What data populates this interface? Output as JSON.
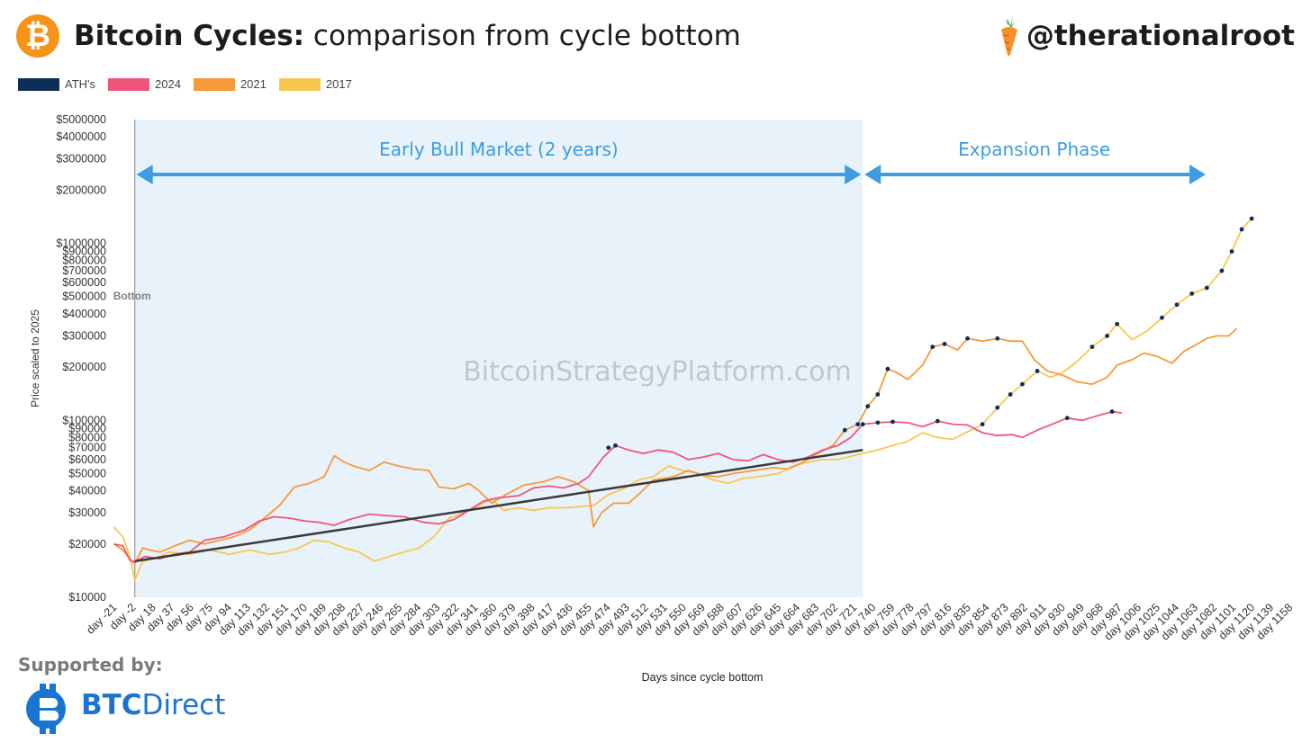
{
  "header": {
    "title_bold": "Bitcoin Cycles:",
    "title_rest": " comparison from cycle bottom",
    "logo_glyph": "₿",
    "handle": "@therationalroot",
    "handle_icon": "carrot-icon"
  },
  "colors": {
    "ath": "#0d2f57",
    "c2024": "#f0567a",
    "c2021": "#f79a3a",
    "c2017": "#f9c74f",
    "phase_bg": "#e8f2fb",
    "arrow": "#3d9de0",
    "trend": "#3a3a3a",
    "btc_orange": "#f7931a",
    "brand_blue": "#1a75d2"
  },
  "legend": [
    {
      "label": "ATH's",
      "color": "#0d2f57"
    },
    {
      "label": "2024",
      "color": "#f0567a"
    },
    {
      "label": "2021",
      "color": "#f79a3a"
    },
    {
      "label": "2017",
      "color": "#f9c74f"
    }
  ],
  "chart_data": {
    "type": "line",
    "title": "Bitcoin Cycles: comparison from cycle bottom",
    "xlabel": "Days since cycle bottom",
    "ylabel": "Price scaled to 2025",
    "y_scale": "log",
    "xlim": [
      -25,
      1165
    ],
    "ylim": [
      10000,
      5000000
    ],
    "x_ticks": [
      -21,
      -2,
      18,
      37,
      56,
      75,
      94,
      113,
      132,
      151,
      170,
      189,
      208,
      227,
      246,
      265,
      284,
      303,
      322,
      341,
      360,
      379,
      398,
      417,
      436,
      455,
      474,
      493,
      512,
      531,
      550,
      569,
      588,
      607,
      626,
      645,
      664,
      683,
      702,
      721,
      740,
      759,
      778,
      797,
      816,
      835,
      854,
      873,
      892,
      911,
      930,
      949,
      968,
      987,
      1006,
      1025,
      1044,
      1063,
      1082,
      1101,
      1120,
      1139,
      1158
    ],
    "x_tick_prefix": "day ",
    "y_ticks": [
      10000,
      20000,
      30000,
      40000,
      50000,
      60000,
      70000,
      80000,
      90000,
      100000,
      200000,
      300000,
      400000,
      500000,
      600000,
      700000,
      800000,
      900000,
      1000000,
      2000000,
      3000000,
      4000000,
      5000000
    ],
    "y_tick_prefix": "$",
    "annotations": {
      "bottom_label": "Bottom",
      "bottom_day": 0,
      "phase1": {
        "label": "Early Bull Market (2 years)",
        "start": 0,
        "end": 730
      },
      "phase2": {
        "label": "Expansion Phase",
        "start": 730,
        "end": 1063
      },
      "watermark": "BitcoinStrategyPlatform.com",
      "trend": {
        "from": [
          0,
          16000
        ],
        "to": [
          730,
          68000
        ]
      }
    },
    "series": [
      {
        "name": "2024",
        "color": "#f0567a",
        "points": [
          [
            -21,
            20000
          ],
          [
            -12,
            19500
          ],
          [
            -5,
            16200
          ],
          [
            0,
            15800
          ],
          [
            10,
            17000
          ],
          [
            25,
            16500
          ],
          [
            40,
            17500
          ],
          [
            55,
            18000
          ],
          [
            70,
            21000
          ],
          [
            90,
            22000
          ],
          [
            110,
            24000
          ],
          [
            125,
            27000
          ],
          [
            140,
            28500
          ],
          [
            155,
            28000
          ],
          [
            170,
            27000
          ],
          [
            185,
            26500
          ],
          [
            200,
            25500
          ],
          [
            215,
            27500
          ],
          [
            235,
            29500
          ],
          [
            250,
            29000
          ],
          [
            270,
            28500
          ],
          [
            290,
            26500
          ],
          [
            305,
            26000
          ],
          [
            320,
            27500
          ],
          [
            335,
            31000
          ],
          [
            350,
            35000
          ],
          [
            365,
            36500
          ],
          [
            385,
            37500
          ],
          [
            400,
            41500
          ],
          [
            415,
            42500
          ],
          [
            430,
            41500
          ],
          [
            445,
            44000
          ],
          [
            455,
            48000
          ],
          [
            470,
            62000
          ],
          [
            482,
            72000
          ],
          [
            495,
            68000
          ],
          [
            510,
            65000
          ],
          [
            525,
            68000
          ],
          [
            540,
            66000
          ],
          [
            555,
            60000
          ],
          [
            570,
            62000
          ],
          [
            585,
            65000
          ],
          [
            600,
            60000
          ],
          [
            615,
            59000
          ],
          [
            630,
            64000
          ],
          [
            645,
            60000
          ],
          [
            660,
            58000
          ],
          [
            675,
            62000
          ],
          [
            690,
            68000
          ],
          [
            705,
            72000
          ],
          [
            718,
            80000
          ],
          [
            730,
            95000
          ],
          [
            745,
            97000
          ],
          [
            760,
            98000
          ],
          [
            775,
            97000
          ],
          [
            790,
            92000
          ],
          [
            805,
            99000
          ],
          [
            820,
            95000
          ],
          [
            835,
            94000
          ],
          [
            850,
            85000
          ],
          [
            865,
            82000
          ],
          [
            880,
            83000
          ],
          [
            890,
            80000
          ],
          [
            905,
            88000
          ],
          [
            920,
            95000
          ],
          [
            935,
            103000
          ],
          [
            950,
            100000
          ],
          [
            965,
            106000
          ],
          [
            980,
            112000
          ],
          [
            990,
            110000
          ]
        ]
      },
      {
        "name": "2021",
        "color": "#f79a3a",
        "points": [
          [
            -21,
            20000
          ],
          [
            -12,
            18500
          ],
          [
            -5,
            16500
          ],
          [
            0,
            15500
          ],
          [
            8,
            19000
          ],
          [
            15,
            18500
          ],
          [
            25,
            18000
          ],
          [
            40,
            19500
          ],
          [
            55,
            21000
          ],
          [
            70,
            20000
          ],
          [
            85,
            21000
          ],
          [
            100,
            22000
          ],
          [
            115,
            24000
          ],
          [
            130,
            28000
          ],
          [
            145,
            33000
          ],
          [
            160,
            42000
          ],
          [
            175,
            44000
          ],
          [
            190,
            48000
          ],
          [
            200,
            63000
          ],
          [
            210,
            58000
          ],
          [
            220,
            55000
          ],
          [
            235,
            52000
          ],
          [
            250,
            58000
          ],
          [
            265,
            55000
          ],
          [
            280,
            53000
          ],
          [
            295,
            52000
          ],
          [
            305,
            42000
          ],
          [
            320,
            41000
          ],
          [
            335,
            44000
          ],
          [
            345,
            40000
          ],
          [
            358,
            34000
          ],
          [
            372,
            38000
          ],
          [
            390,
            43000
          ],
          [
            410,
            45000
          ],
          [
            425,
            48000
          ],
          [
            440,
            45000
          ],
          [
            455,
            40000
          ],
          [
            460,
            25000
          ],
          [
            468,
            30000
          ],
          [
            480,
            34000
          ],
          [
            495,
            34000
          ],
          [
            505,
            38000
          ],
          [
            520,
            46000
          ],
          [
            540,
            48000
          ],
          [
            555,
            52000
          ],
          [
            570,
            49000
          ],
          [
            585,
            48000
          ],
          [
            600,
            50000
          ],
          [
            620,
            52000
          ],
          [
            640,
            54000
          ],
          [
            655,
            53000
          ],
          [
            670,
            58000
          ],
          [
            685,
            65000
          ],
          [
            700,
            72000
          ],
          [
            712,
            88000
          ],
          [
            725,
            95000
          ],
          [
            735,
            120000
          ],
          [
            745,
            140000
          ],
          [
            755,
            195000
          ],
          [
            765,
            185000
          ],
          [
            775,
            170000
          ],
          [
            790,
            205000
          ],
          [
            800,
            260000
          ],
          [
            812,
            270000
          ],
          [
            825,
            250000
          ],
          [
            835,
            290000
          ],
          [
            850,
            280000
          ],
          [
            865,
            290000
          ],
          [
            878,
            280000
          ],
          [
            890,
            280000
          ],
          [
            902,
            220000
          ],
          [
            915,
            190000
          ],
          [
            930,
            180000
          ],
          [
            945,
            165000
          ],
          [
            960,
            160000
          ],
          [
            975,
            175000
          ],
          [
            985,
            205000
          ],
          [
            1000,
            220000
          ],
          [
            1012,
            240000
          ],
          [
            1025,
            230000
          ],
          [
            1040,
            210000
          ],
          [
            1052,
            245000
          ],
          [
            1063,
            265000
          ],
          [
            1075,
            290000
          ],
          [
            1085,
            300000
          ],
          [
            1097,
            300000
          ],
          [
            1105,
            330000
          ]
        ]
      },
      {
        "name": "2017",
        "color": "#f9c74f",
        "points": [
          [
            -21,
            25000
          ],
          [
            -12,
            22000
          ],
          [
            -5,
            17000
          ],
          [
            0,
            12500
          ],
          [
            8,
            16000
          ],
          [
            20,
            16500
          ],
          [
            35,
            18000
          ],
          [
            55,
            17500
          ],
          [
            75,
            18500
          ],
          [
            95,
            17500
          ],
          [
            115,
            18500
          ],
          [
            135,
            17500
          ],
          [
            150,
            18000
          ],
          [
            165,
            19000
          ],
          [
            180,
            21000
          ],
          [
            195,
            20500
          ],
          [
            210,
            19000
          ],
          [
            225,
            18000
          ],
          [
            240,
            16000
          ],
          [
            255,
            17000
          ],
          [
            270,
            18000
          ],
          [
            285,
            19000
          ],
          [
            300,
            22000
          ],
          [
            315,
            28000
          ],
          [
            330,
            30000
          ],
          [
            345,
            33000
          ],
          [
            358,
            36000
          ],
          [
            370,
            31000
          ],
          [
            385,
            32000
          ],
          [
            400,
            31000
          ],
          [
            415,
            32000
          ],
          [
            430,
            32000
          ],
          [
            445,
            32500
          ],
          [
            460,
            33000
          ],
          [
            475,
            38000
          ],
          [
            490,
            41000
          ],
          [
            505,
            46000
          ],
          [
            520,
            48000
          ],
          [
            535,
            55000
          ],
          [
            550,
            52000
          ],
          [
            565,
            50000
          ],
          [
            580,
            46000
          ],
          [
            595,
            44000
          ],
          [
            610,
            47000
          ],
          [
            625,
            48000
          ],
          [
            645,
            50000
          ],
          [
            660,
            55000
          ],
          [
            675,
            58000
          ],
          [
            690,
            60000
          ],
          [
            705,
            60000
          ],
          [
            720,
            63000
          ],
          [
            730,
            65000
          ],
          [
            745,
            68000
          ],
          [
            760,
            72000
          ],
          [
            775,
            76000
          ],
          [
            790,
            85000
          ],
          [
            805,
            80000
          ],
          [
            820,
            78000
          ],
          [
            835,
            86000
          ],
          [
            850,
            95000
          ],
          [
            865,
            118000
          ],
          [
            878,
            140000
          ],
          [
            890,
            160000
          ],
          [
            905,
            190000
          ],
          [
            918,
            175000
          ],
          [
            930,
            185000
          ],
          [
            945,
            215000
          ],
          [
            960,
            260000
          ],
          [
            975,
            300000
          ],
          [
            985,
            350000
          ],
          [
            1000,
            285000
          ],
          [
            1015,
            320000
          ],
          [
            1030,
            380000
          ],
          [
            1045,
            450000
          ],
          [
            1060,
            520000
          ],
          [
            1075,
            560000
          ],
          [
            1090,
            700000
          ],
          [
            1100,
            900000
          ],
          [
            1110,
            1200000
          ],
          [
            1120,
            1380000
          ]
        ]
      }
    ],
    "ath_points": [
      {
        "series": "2024",
        "points": [
          [
            475,
            70000
          ],
          [
            482,
            72000
          ],
          [
            730,
            95000
          ],
          [
            745,
            97000
          ],
          [
            760,
            98000
          ],
          [
            805,
            99000
          ],
          [
            935,
            103000
          ],
          [
            980,
            112000
          ]
        ]
      },
      {
        "series": "2021",
        "points": [
          [
            712,
            88000
          ],
          [
            725,
            95000
          ],
          [
            735,
            120000
          ],
          [
            745,
            140000
          ],
          [
            755,
            195000
          ],
          [
            800,
            260000
          ],
          [
            812,
            270000
          ],
          [
            835,
            290000
          ],
          [
            865,
            290000
          ]
        ]
      },
      {
        "series": "2017",
        "points": [
          [
            850,
            95000
          ],
          [
            865,
            118000
          ],
          [
            878,
            140000
          ],
          [
            890,
            160000
          ],
          [
            905,
            190000
          ],
          [
            960,
            260000
          ],
          [
            975,
            300000
          ],
          [
            985,
            350000
          ],
          [
            1030,
            380000
          ],
          [
            1045,
            450000
          ],
          [
            1060,
            520000
          ],
          [
            1075,
            560000
          ],
          [
            1090,
            700000
          ],
          [
            1100,
            900000
          ],
          [
            1110,
            1200000
          ],
          [
            1120,
            1380000
          ]
        ]
      }
    ]
  },
  "footer": {
    "supported_by": "Supported by:",
    "brand_bold": "BTC",
    "brand_rest": "Direct"
  }
}
